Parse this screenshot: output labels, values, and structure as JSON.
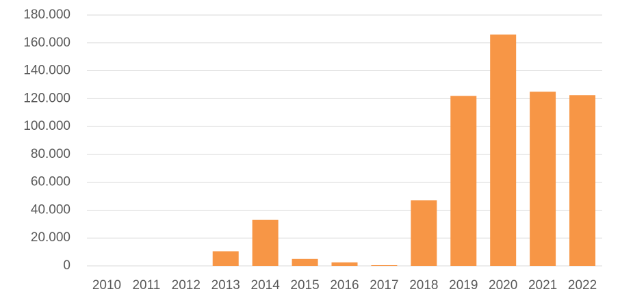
{
  "chart_data": {
    "type": "bar",
    "categories": [
      "2010",
      "2011",
      "2012",
      "2013",
      "2014",
      "2015",
      "2016",
      "2017",
      "2018",
      "2019",
      "2020",
      "2021",
      "2022"
    ],
    "values": [
      0,
      0,
      0,
      10500,
      33000,
      5000,
      2500,
      500,
      47000,
      122000,
      166000,
      125000,
      122500
    ],
    "color": "#f79646",
    "ylim": [
      0,
      180000
    ],
    "yticks": [
      0,
      {
        "value": 20000,
        "label": "20.000"
      },
      {
        "value": 40000,
        "label": "40.000"
      },
      {
        "value": 60000,
        "label": "60.000"
      },
      {
        "value": 80000,
        "label": "80.000"
      },
      {
        "value": 100000,
        "label": "100.000"
      },
      {
        "value": 120000,
        "label": "120.000"
      },
      {
        "value": 140000,
        "label": "140.000"
      },
      {
        "value": 160000,
        "label": "160.000"
      },
      {
        "value": 180000,
        "label": "180.000"
      }
    ],
    "grid": true
  }
}
